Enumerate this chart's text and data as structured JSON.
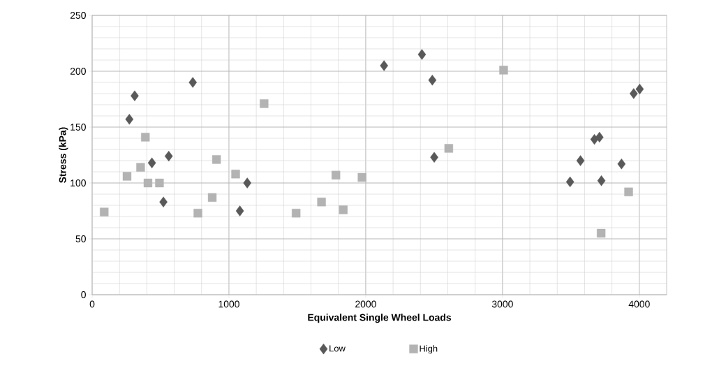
{
  "chart_data": {
    "type": "scatter",
    "xlabel": "Equivalent Single Wheel Loads",
    "ylabel": "Stress (kPa)",
    "xlim": [
      0,
      4200
    ],
    "xticks": [
      0,
      1000,
      2000,
      3000,
      4000
    ],
    "ylim": [
      0,
      250
    ],
    "yticks": [
      0,
      50,
      100,
      150,
      200,
      250
    ],
    "grid": true,
    "legend": "bottom",
    "series": [
      {
        "name": "Low",
        "color": "#595959",
        "marker": "diamond",
        "x": [
          311,
          272,
          736,
          437,
          560,
          521,
          1134,
          1080,
          2134,
          2411,
          2487,
          2501,
          3494,
          3570,
          3672,
          3709,
          3723,
          3870,
          3959,
          4003
        ],
        "values": [
          178,
          157,
          190,
          118,
          124,
          83,
          100,
          75,
          205,
          215,
          192,
          123,
          101,
          120,
          139,
          141,
          102,
          117,
          180,
          184
        ]
      },
      {
        "name": "High",
        "color": "#b3b3b3",
        "marker": "square",
        "x": [
          88,
          255,
          354,
          389,
          408,
          492,
          773,
          909,
          878,
          1049,
          1257,
          1491,
          1677,
          1782,
          1836,
          1973,
          2607,
          3008,
          3721,
          3922
        ],
        "values": [
          74,
          106,
          114,
          141,
          100,
          100,
          73,
          121,
          87,
          108,
          171,
          73,
          83,
          107,
          76,
          105,
          131,
          201,
          55,
          92
        ]
      }
    ]
  }
}
